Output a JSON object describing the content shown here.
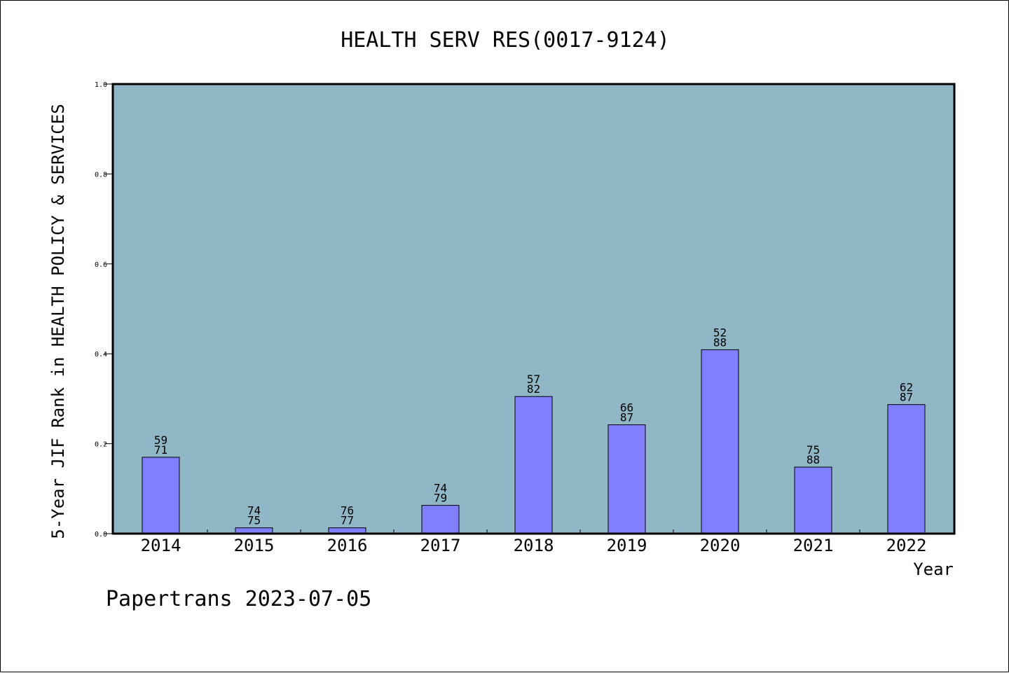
{
  "chart_data": {
    "type": "bar",
    "title": "HEALTH SERV RES(0017-9124)",
    "xlabel": "Year",
    "ylabel": "5-Year JIF Rank in HEALTH POLICY & SERVICES",
    "categories": [
      "2014",
      "2015",
      "2016",
      "2017",
      "2018",
      "2019",
      "2020",
      "2021",
      "2022"
    ],
    "values": [
      0.17,
      0.013,
      0.013,
      0.063,
      0.305,
      0.242,
      0.409,
      0.148,
      0.287
    ],
    "rank": [
      "59",
      "74",
      "76",
      "74",
      "57",
      "66",
      "52",
      "75",
      "62"
    ],
    "total": [
      "71",
      "75",
      "77",
      "79",
      "82",
      "87",
      "88",
      "88",
      "87"
    ],
    "ylim": [
      0,
      1.0
    ],
    "yticks": [
      "0.0",
      "0.2",
      "0.4",
      "0.6",
      "0.8",
      "1.0"
    ],
    "grid": false,
    "legend": "none",
    "colors": {
      "plot_bg": "#8fb7c5",
      "bar_fill": "#8080ff",
      "bar_stroke": "#000000"
    }
  },
  "footer": {
    "text": "Papertrans 2023-07-05"
  }
}
